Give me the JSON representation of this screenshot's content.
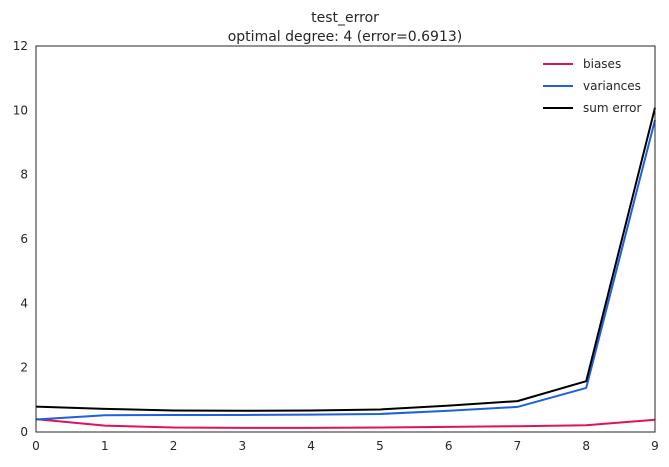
{
  "chart_data": {
    "type": "line",
    "title": "test_error",
    "subtitle": "optimal degree: 4 (error=0.6913)",
    "xlabel": "",
    "ylabel": "",
    "x": [
      0,
      1,
      2,
      3,
      4,
      5,
      6,
      7,
      8,
      9
    ],
    "xlim": [
      0,
      9
    ],
    "ylim": [
      0,
      12
    ],
    "xticks": [
      "0",
      "1",
      "2",
      "3",
      "4",
      "5",
      "6",
      "7",
      "8",
      "9"
    ],
    "yticks": [
      "0",
      "2",
      "4",
      "6",
      "8",
      "10",
      "12"
    ],
    "grid": false,
    "legend_position": "top-right",
    "series": [
      {
        "name": "biases",
        "color": "#e0115f",
        "values": [
          0.4,
          0.2,
          0.14,
          0.13,
          0.13,
          0.14,
          0.16,
          0.18,
          0.21,
          0.38
        ]
      },
      {
        "name": "variances",
        "color": "#1f5fe0",
        "values": [
          0.39,
          0.52,
          0.53,
          0.53,
          0.54,
          0.56,
          0.66,
          0.78,
          1.37,
          9.7
        ]
      },
      {
        "name": "sum error",
        "color": "#000000",
        "values": [
          0.79,
          0.72,
          0.67,
          0.66,
          0.67,
          0.7,
          0.82,
          0.96,
          1.58,
          10.08
        ]
      }
    ]
  }
}
